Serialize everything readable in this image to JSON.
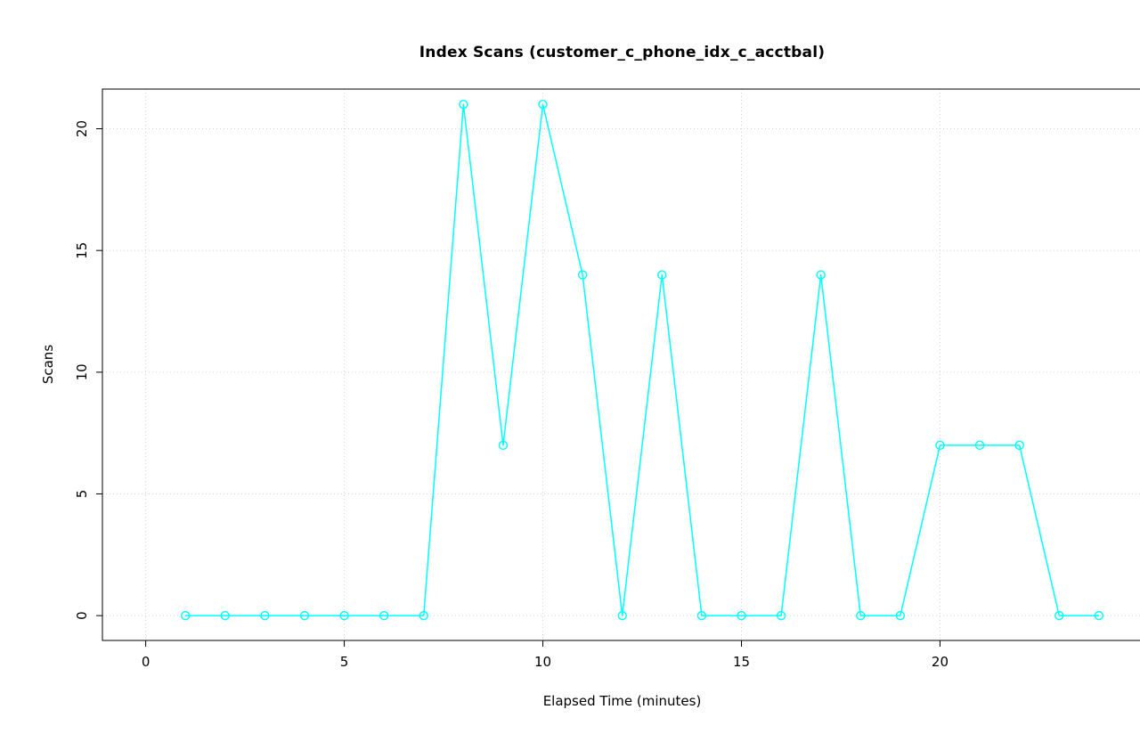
{
  "chart_data": {
    "type": "line",
    "title": "Index Scans (customer_c_phone_idx_c_acctbal)",
    "xlabel": "Elapsed Time (minutes)",
    "ylabel": "Scans",
    "x": [
      1,
      2,
      3,
      4,
      5,
      6,
      7,
      8,
      9,
      10,
      11,
      12,
      13,
      14,
      15,
      16,
      17,
      18,
      19,
      20,
      21,
      22,
      23,
      24
    ],
    "y": [
      0,
      0,
      0,
      0,
      0,
      0,
      0,
      21,
      7,
      21,
      14,
      0,
      14,
      0,
      0,
      0,
      14,
      0,
      0,
      7,
      7,
      7,
      0,
      0
    ],
    "xlim": [
      -1.09,
      25.08
    ],
    "ylim": [
      -1.02,
      21.63
    ],
    "xticks": [
      0,
      5,
      10,
      15,
      20
    ],
    "yticks": [
      0,
      5,
      10,
      15,
      20
    ],
    "line_color": "#00FFFF",
    "marker": "open-circle",
    "grid_color": "#D3D3D3",
    "grid_style": "dotted",
    "grid": "on",
    "legend": "none",
    "axis_color": "#000000",
    "background": "#FFFFFF"
  }
}
